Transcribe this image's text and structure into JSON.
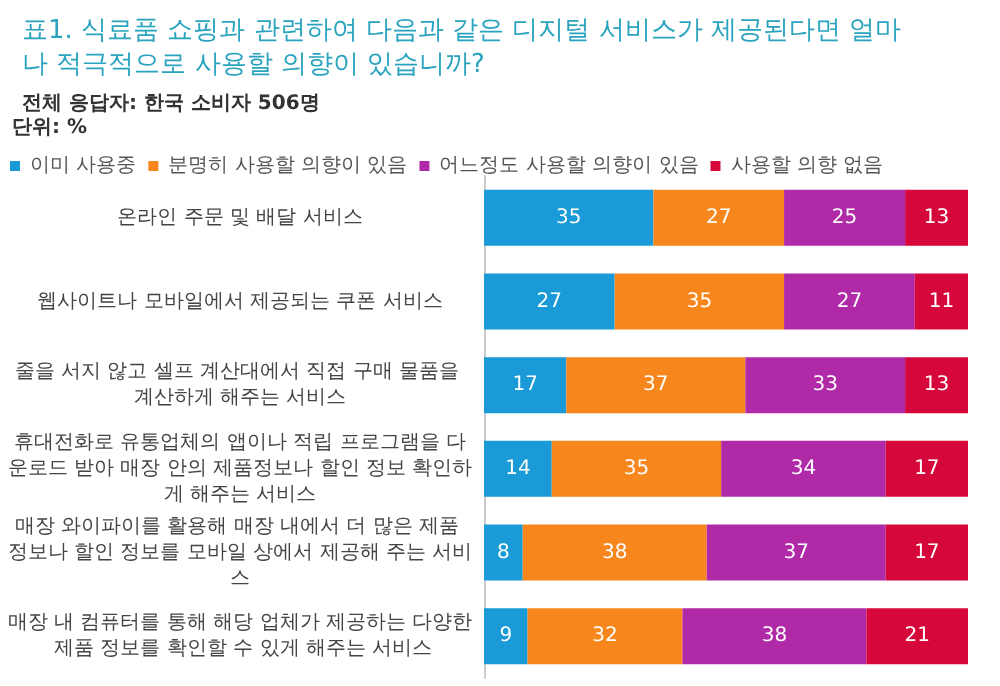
{
  "chart_data": {
    "type": "bar",
    "orientation": "horizontal",
    "stacked": true,
    "title": "표1. 식료품 쇼핑과 관련하여 다음과 같은 디지털 서비스가 제공된다면 얼마나 적극적으로 사용할 의향이 있습니까?",
    "subtitle": "전체 응답자: 한국 소비자 506명",
    "annotations": [
      "단위: %"
    ],
    "categories": [
      "온라인 주문 및 배달 서비스",
      "웹사이트나 모바일에서 제공되는 쿠폰 서비스",
      "줄을 서지 않고 셀프 계산대에서 직접 구매 물품을 계산하게 해주는 서비스",
      "휴대전화로 유통업체의 앱이나 적립 프로그램을 다운로드 받아 매장 안의 제품정보나 할인 정보 확인하게 해주는 서비스",
      "매장 와이파이를 활용해 매장 내에서 더 많은 제품 정보나 할인 정보를 모바일 상에서 제공해 주는 서비스",
      "매장 내 컴퓨터를 통해 해당 업체가 제공하는 다양한 제품 정보를 확인할 수 있게 해주는 서비스"
    ],
    "series": [
      {
        "name": "이미 사용중",
        "color": "#1a9ad6",
        "values": [
          35,
          27,
          17,
          14,
          8,
          9
        ]
      },
      {
        "name": "분명히 사용할 의향이 있음",
        "color": "#f7861c",
        "values": [
          27,
          35,
          37,
          35,
          38,
          32
        ]
      },
      {
        "name": "어느정도 사용할 의향이 있음",
        "color": "#b02aa8",
        "values": [
          25,
          27,
          33,
          34,
          37,
          38
        ]
      },
      {
        "name": "사용할 의향 없음",
        "color": "#d6083b",
        "values": [
          13,
          11,
          13,
          17,
          17,
          21
        ]
      }
    ],
    "xlim": [
      0,
      100
    ],
    "data_labels": true,
    "legend": "top",
    "tick_labels": "y",
    "grid": false
  }
}
